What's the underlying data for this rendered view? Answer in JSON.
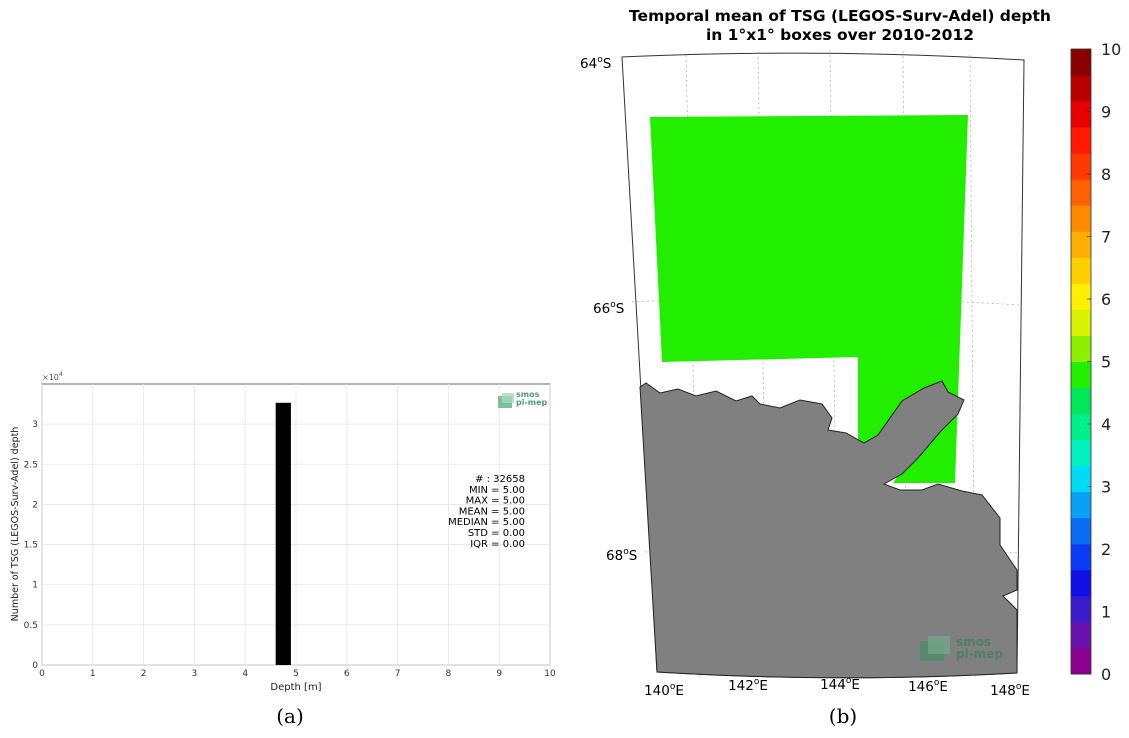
{
  "chart_data": [
    {
      "type": "bar",
      "title": "",
      "xlabel": "Depth [m]",
      "ylabel": "Number of TSG (LEGOS-Surv-Adel) depth",
      "xlim": [
        0,
        10
      ],
      "ylim": [
        0,
        35000
      ],
      "x_ticks": [
        "0",
        "1",
        "2",
        "3",
        "4",
        "5",
        "6",
        "7",
        "8",
        "9",
        "10"
      ],
      "y_ticks": [
        "0",
        "0.5",
        "1",
        "1.5",
        "2",
        "2.5",
        "3"
      ],
      "y_multiplier": "×10",
      "y_multiplier_exp": "4",
      "grid": true,
      "bars": [
        {
          "x0": 4.6,
          "x1": 4.9,
          "value": 32658
        }
      ],
      "stats": [
        "# : 32658",
        "MIN = 5.00",
        "MAX =  5.00",
        "MEAN = 5.00",
        "MEDIAN = 5.00",
        "STD = 0.00",
        "IQR = 0.00"
      ],
      "logo": {
        "line1": "smos",
        "line2": "pi-mep"
      },
      "caption": "(a)"
    },
    {
      "type": "heatmap",
      "title_line1": "Temporal mean of TSG (LEGOS-Surv-Adel) depth",
      "title_line2": "in 1°x1° boxes over 2010-2012",
      "lon_range": [
        140,
        148
      ],
      "lat_range": [
        -64,
        -68
      ],
      "lon_labels": [
        {
          "deg": "140",
          "sup": "o",
          "hemi": "E"
        },
        {
          "deg": "142",
          "sup": "o",
          "hemi": "E"
        },
        {
          "deg": "144",
          "sup": "o",
          "hemi": "E"
        },
        {
          "deg": "146",
          "sup": "o",
          "hemi": "E"
        },
        {
          "deg": "148",
          "sup": "o",
          "hemi": "E"
        }
      ],
      "lat_labels": [
        {
          "deg": "64",
          "sup": "o",
          "hemi": "S"
        },
        {
          "deg": "66",
          "sup": "o",
          "hemi": "S"
        },
        {
          "deg": "68",
          "sup": "o",
          "hemi": "S"
        }
      ],
      "field_value": 5,
      "field_color": "#22ee00",
      "land_color": "#808080",
      "colorbar": {
        "min": 0,
        "max": 10,
        "tick_labels": [
          "0",
          "1",
          "2",
          "3",
          "4",
          "5",
          "6",
          "7",
          "8",
          "9",
          "10"
        ],
        "colors": [
          "#8a008f",
          "#6a10ad",
          "#3a1ccc",
          "#1010e6",
          "#0a3cf5",
          "#0a6cf5",
          "#0aa0f5",
          "#00dcf5",
          "#00f0c0",
          "#00f08a",
          "#00e85a",
          "#22ee00",
          "#8cf000",
          "#d8f200",
          "#fff000",
          "#ffd000",
          "#ffae00",
          "#ff8a00",
          "#ff6000",
          "#ff3a00",
          "#ff1a00",
          "#e80000",
          "#b80000",
          "#8a0000"
        ]
      },
      "grid": true,
      "logo": {
        "line1": "smos",
        "line2": "pi-mep"
      },
      "caption": "(b)"
    }
  ]
}
